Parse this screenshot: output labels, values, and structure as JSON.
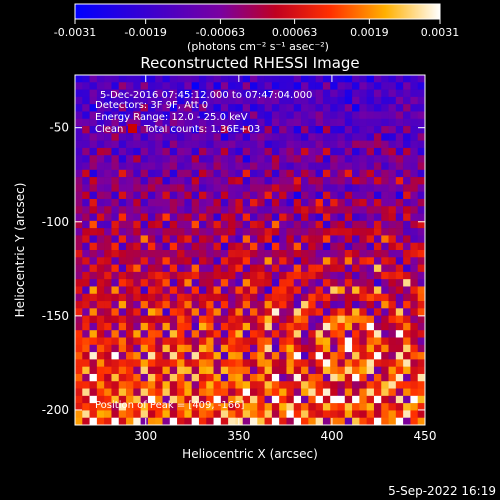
{
  "chart_data": {
    "type": "heatmap",
    "title": "Reconstructed RHESSI Image",
    "xlabel": "Heliocentric X (arcsec)",
    "ylabel": "Heliocentric Y (arcsec)",
    "xlim": [
      262,
      450
    ],
    "ylim": [
      -208,
      -22
    ],
    "x_ticks": [
      300,
      350,
      400,
      450
    ],
    "y_ticks": [
      -50,
      -100,
      -150,
      -200
    ],
    "x_tick_labels": [
      "300",
      "350",
      "400",
      "450"
    ],
    "y_tick_labels": [
      "-50",
      "-100",
      "-150",
      "-200"
    ],
    "colorbar": {
      "min": -0.0031,
      "max": 0.0031,
      "ticks": [
        -0.0031,
        -0.0019,
        -0.00063,
        0.00063,
        0.0019,
        0.0031
      ],
      "tick_labels": [
        "-0.0031",
        "-0.0019",
        "-0.00063",
        "0.00063",
        "0.0019",
        "0.0031"
      ],
      "units": "(photons cm⁻² s⁻¹ asec⁻²)",
      "colormap": "blue-purple-red-yellow-white"
    },
    "peak": {
      "x": 409,
      "y": -166
    },
    "annotations": [
      "5-Dec-2016 07:45:12.000 to 07:47:04.000",
      "Detectors: 3F 9F, Att 0",
      "Energy Range: 12.0 - 25.0 keV",
      "Clean",
      "Total counts: 1.36E+03",
      "Position of Peak = [409, -166]"
    ]
  },
  "footer": {
    "date": "5-Sep-2022 16:19"
  }
}
